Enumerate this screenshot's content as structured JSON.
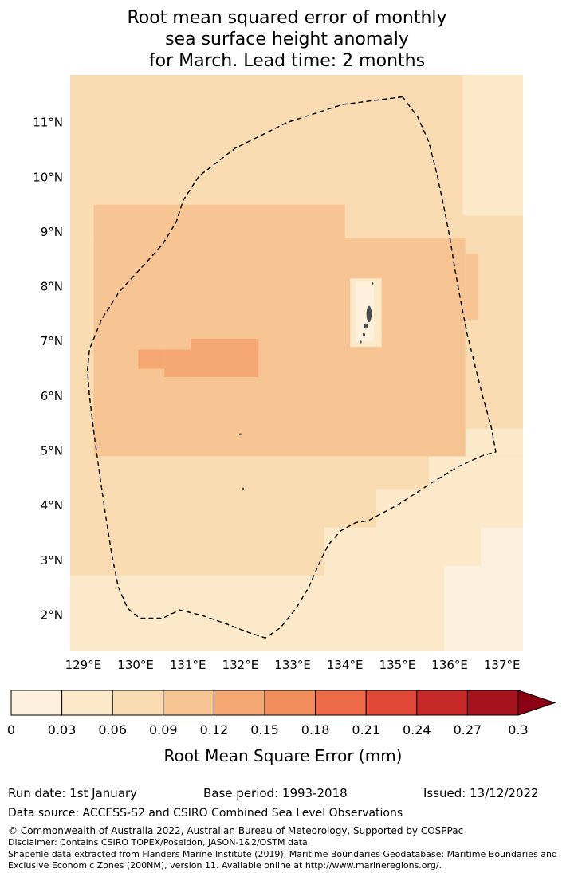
{
  "title": {
    "line1": "Root mean squared error of monthly",
    "line2": "sea surface height anomaly",
    "line3": "for March. Lead time: 2 months"
  },
  "chart_data": {
    "type": "heatmap",
    "title": "Root mean squared error of monthly sea surface height anomaly for March. Lead time: 2 months",
    "xlabel": "",
    "ylabel": "",
    "grid": false,
    "xlim": [
      128.75,
      137.4
    ],
    "ylim": [
      1.35,
      11.87
    ],
    "x_ticks": [
      {
        "v": 129,
        "label": "129°E"
      },
      {
        "v": 130,
        "label": "130°E"
      },
      {
        "v": 131,
        "label": "131°E"
      },
      {
        "v": 132,
        "label": "132°E"
      },
      {
        "v": 133,
        "label": "133°E"
      },
      {
        "v": 134,
        "label": "134°E"
      },
      {
        "v": 135,
        "label": "135°E"
      },
      {
        "v": 136,
        "label": "136°E"
      },
      {
        "v": 137,
        "label": "137°E"
      }
    ],
    "y_ticks": [
      {
        "v": 2,
        "label": "2°N"
      },
      {
        "v": 3,
        "label": "3°N"
      },
      {
        "v": 4,
        "label": "4°N"
      },
      {
        "v": 5,
        "label": "5°N"
      },
      {
        "v": 6,
        "label": "6°N"
      },
      {
        "v": 7,
        "label": "7°N"
      },
      {
        "v": 8,
        "label": "8°N"
      },
      {
        "v": 9,
        "label": "9°N"
      },
      {
        "v": 10,
        "label": "10°N"
      },
      {
        "v": 11,
        "label": "11°N"
      }
    ],
    "value_bins": [
      0,
      0.03,
      0.06,
      0.09,
      0.12,
      0.15,
      0.18,
      0.21,
      0.24,
      0.27,
      0.3
    ],
    "bin_colors": [
      "#fdf1dd",
      "#fbe9ca",
      "#f9dcb2",
      "#f7c593",
      "#f5a873",
      "#f28e5c",
      "#ee6b4a",
      "#e04937",
      "#c52a28",
      "#a5131f"
    ],
    "arrow_color": "#8c0013",
    "colorbar_ticks": [
      "0",
      "0.03",
      "0.06",
      "0.09",
      "0.12",
      "0.15",
      "0.18",
      "0.21",
      "0.24",
      "0.27",
      "0.3"
    ],
    "colorbar_label": "Root Mean Square Error (mm)",
    "field_regions": [
      {
        "x0": 128.75,
        "x1": 137.4,
        "y0": 1.35,
        "y1": 11.87,
        "value": 0.075
      },
      {
        "x0": 136.25,
        "x1": 137.4,
        "y0": 9.3,
        "y1": 11.87,
        "value": 0.045
      },
      {
        "x0": 128.75,
        "x1": 133.6,
        "y0": 1.35,
        "y1": 2.72,
        "value": 0.045
      },
      {
        "x0": 133.6,
        "x1": 137.4,
        "y0": 1.35,
        "y1": 3.6,
        "value": 0.045
      },
      {
        "x0": 134.6,
        "x1": 137.4,
        "y0": 3.6,
        "y1": 4.3,
        "value": 0.045
      },
      {
        "x0": 135.6,
        "x1": 137.4,
        "y0": 4.3,
        "y1": 4.9,
        "value": 0.045
      },
      {
        "x0": 136.3,
        "x1": 137.4,
        "y0": 4.9,
        "y1": 5.4,
        "value": 0.045
      },
      {
        "x0": 135.9,
        "x1": 137.4,
        "y0": 1.35,
        "y1": 2.9,
        "value": 0.015
      },
      {
        "x0": 136.6,
        "x1": 137.4,
        "y0": 2.9,
        "y1": 3.6,
        "value": 0.015
      },
      {
        "x0": 129.2,
        "x1": 136.3,
        "y0": 4.9,
        "y1": 8.9,
        "value": 0.105
      },
      {
        "x0": 129.2,
        "x1": 134.0,
        "y0": 8.9,
        "y1": 9.5,
        "value": 0.105
      },
      {
        "x0": 136.3,
        "x1": 136.55,
        "y0": 7.4,
        "y1": 8.6,
        "value": 0.105
      },
      {
        "x0": 130.55,
        "x1": 132.35,
        "y0": 6.35,
        "y1": 6.85,
        "value": 0.135
      },
      {
        "x0": 131.05,
        "x1": 132.35,
        "y0": 6.35,
        "y1": 7.05,
        "value": 0.135
      },
      {
        "x0": 130.05,
        "x1": 130.55,
        "y0": 6.5,
        "y1": 6.85,
        "value": 0.135
      },
      {
        "x0": 134.1,
        "x1": 134.7,
        "y0": 6.9,
        "y1": 8.15,
        "value": 0.045
      },
      {
        "x0": 134.2,
        "x1": 134.55,
        "y0": 7.0,
        "y1": 8.1,
        "value": 0.015
      }
    ],
    "eez_boundary": [
      [
        135.1,
        11.47
      ],
      [
        133.95,
        11.33
      ],
      [
        132.89,
        11.0
      ],
      [
        131.9,
        10.53
      ],
      [
        131.21,
        10.02
      ],
      [
        130.91,
        9.58
      ],
      [
        130.78,
        9.19
      ],
      [
        130.52,
        8.78
      ],
      [
        130.22,
        8.46
      ],
      [
        129.69,
        7.91
      ],
      [
        129.35,
        7.4
      ],
      [
        129.12,
        6.86
      ],
      [
        129.08,
        6.48
      ],
      [
        129.12,
        5.99
      ],
      [
        129.21,
        5.29
      ],
      [
        129.32,
        4.53
      ],
      [
        129.43,
        3.8
      ],
      [
        129.55,
        3.08
      ],
      [
        129.67,
        2.51
      ],
      [
        129.85,
        2.12
      ],
      [
        130.08,
        1.94
      ],
      [
        130.52,
        1.94
      ],
      [
        130.84,
        2.09
      ],
      [
        131.24,
        2.0
      ],
      [
        131.7,
        1.85
      ],
      [
        132.16,
        1.68
      ],
      [
        132.48,
        1.58
      ],
      [
        132.77,
        1.77
      ],
      [
        133.07,
        2.13
      ],
      [
        133.31,
        2.51
      ],
      [
        133.5,
        2.93
      ],
      [
        133.68,
        3.28
      ],
      [
        133.92,
        3.54
      ],
      [
        134.21,
        3.69
      ],
      [
        134.44,
        3.72
      ],
      [
        135.02,
        4.02
      ],
      [
        135.63,
        4.4
      ],
      [
        136.16,
        4.71
      ],
      [
        136.62,
        4.91
      ],
      [
        136.88,
        4.98
      ],
      [
        136.79,
        5.46
      ],
      [
        136.62,
        6.03
      ],
      [
        136.48,
        6.57
      ],
      [
        136.33,
        7.15
      ],
      [
        136.21,
        7.74
      ],
      [
        136.1,
        8.32
      ],
      [
        136.0,
        8.91
      ],
      [
        135.88,
        9.5
      ],
      [
        135.75,
        10.08
      ],
      [
        135.6,
        10.65
      ],
      [
        135.39,
        11.1
      ]
    ],
    "islands": [
      {
        "lon": 134.46,
        "lat": 7.5,
        "w": 0.1,
        "h": 0.3
      },
      {
        "lon": 134.4,
        "lat": 7.28,
        "w": 0.08,
        "h": 0.1
      },
      {
        "lon": 134.36,
        "lat": 7.12,
        "w": 0.05,
        "h": 0.08
      },
      {
        "lon": 134.3,
        "lat": 6.99,
        "w": 0.04,
        "h": 0.05
      },
      {
        "lon": 134.53,
        "lat": 8.06,
        "w": 0.03,
        "h": 0.04
      },
      {
        "lon": 132.0,
        "lat": 5.3,
        "w": 0.04,
        "h": 0.04
      },
      {
        "lon": 132.05,
        "lat": 4.31,
        "w": 0.04,
        "h": 0.04
      }
    ],
    "island_color": "#4d4d4d"
  },
  "footer": {
    "run_date": "Run date: 1st January",
    "base_period": "Base period: 1993-2018",
    "issued": "Issued: 13/12/2022",
    "data_source": "Data source: ACCESS-S2 and CSIRO Combined Sea Level Observations",
    "copyright": "© Commonwealth of Australia 2022, Australian Bureau of Meteorology, Supported by COSPPac",
    "disclaimer": "Disclaimer: Contains CSIRO TOPEX/Poseidon, JASON-1&2/OSTM data",
    "shapefile": "Shapefile data extracted from Flanders Marine Institute (2019), Maritime Boundaries Geodatabase: Maritime Boundaries and Exclusive Economic Zones (200NM), version 11. Available online at http://www.marineregions.org/."
  }
}
